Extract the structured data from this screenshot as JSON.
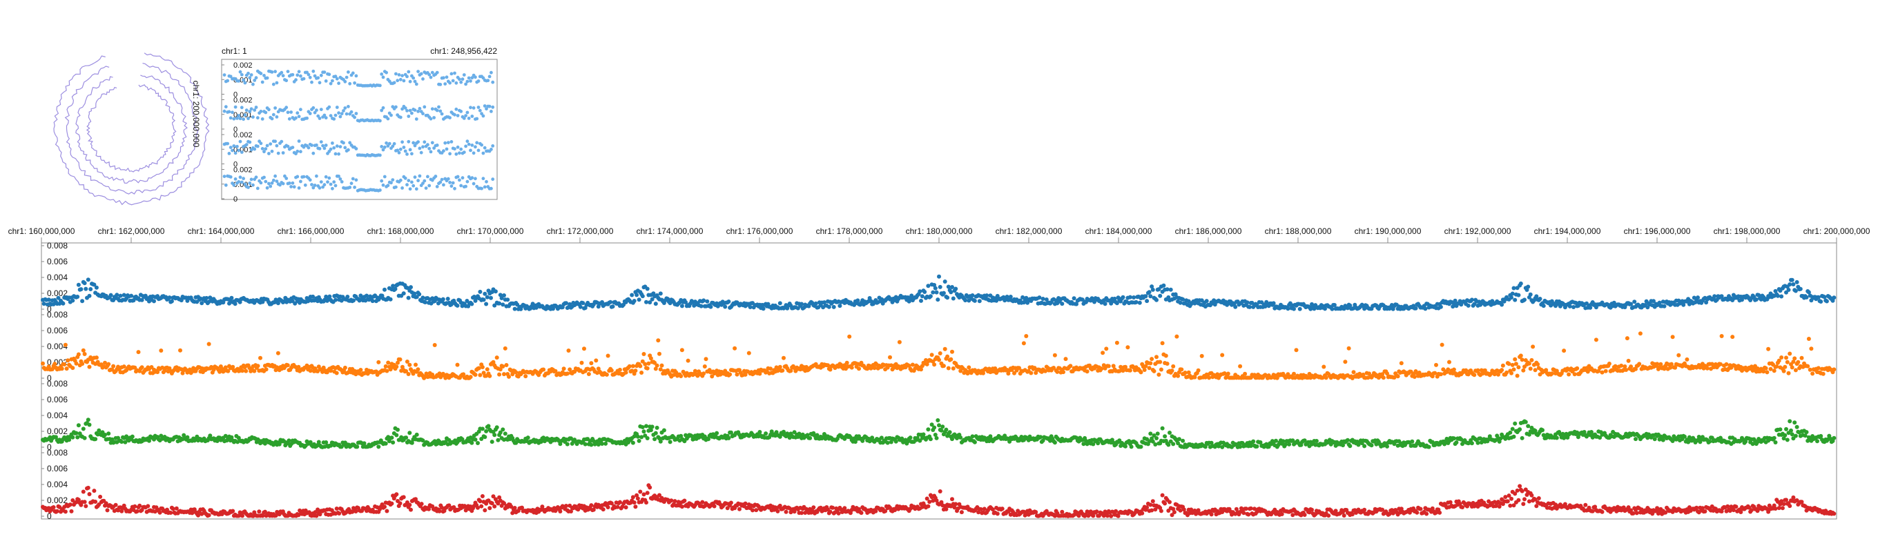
{
  "overview": {
    "left_label": "chr1: 1",
    "right_label": "chr1: 248,956,422",
    "circular_label": "chr1: 200,000,000",
    "ticks": [
      "0.002",
      "0.001",
      "0"
    ]
  },
  "detail": {
    "xticks": [
      "chr1: 160,000,000",
      "chr1: 162,000,000",
      "chr1: 164,000,000",
      "chr1: 166,000,000",
      "chr1: 168,000,000",
      "chr1: 170,000,000",
      "chr1: 172,000,000",
      "chr1: 174,000,000",
      "chr1: 176,000,000",
      "chr1: 178,000,000",
      "chr1: 180,000,000",
      "chr1: 182,000,000",
      "chr1: 184,000,000",
      "chr1: 186,000,000",
      "chr1: 188,000,000",
      "chr1: 190,000,000",
      "chr1: 192,000,000",
      "chr1: 194,000,000",
      "chr1: 196,000,000",
      "chr1: 198,000,000",
      "chr1: 200,000,000"
    ],
    "yticks": [
      "0.008",
      "0.006",
      "0.004",
      "0.002",
      "0"
    ]
  },
  "colors": {
    "overview": "#6aaee8",
    "circular": "#9c8ee0",
    "series": [
      "#1f77b4",
      "#ff7f0e",
      "#2ca02c",
      "#d62728"
    ]
  },
  "chart_data": [
    {
      "type": "scatter",
      "x_range": [
        1,
        248956422
      ],
      "ylim": [
        0,
        0.0025
      ],
      "tracks": 4,
      "description_of_profile": [
        {
          "region": [
            1,
            120000000
          ],
          "value_range": [
            0.0008,
            0.0022
          ]
        },
        {
          "region": [
            122000000,
            143000000
          ],
          "value": 0.0003
        },
        {
          "region": [
            143000000,
            248956422
          ],
          "value_range": [
            0.0008,
            0.0022
          ]
        }
      ]
    },
    {
      "type": "scatter",
      "x_range": [
        160000000,
        200000000
      ],
      "ylim": [
        0,
        0.008
      ],
      "series_count": 4,
      "baseline": 0.0005,
      "peak_positions": [
        161000000,
        168000000,
        170000000,
        173500000,
        180000000,
        185000000,
        193000000,
        199000000
      ]
    }
  ]
}
